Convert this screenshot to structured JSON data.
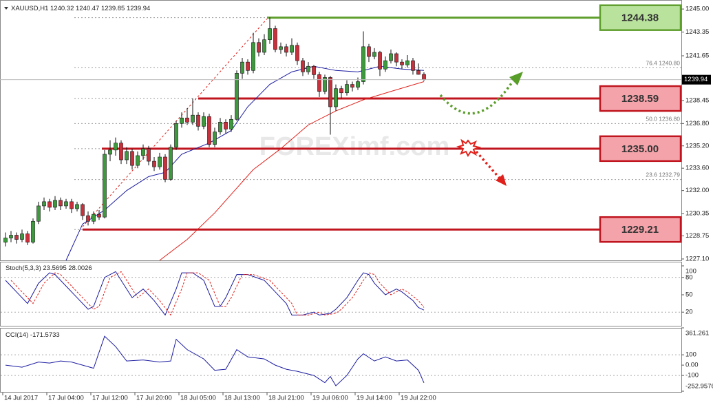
{
  "chart_data": [
    {
      "type": "candlestick",
      "title": "XAUUSD,H1",
      "up_color": "#3c9a3c",
      "down_color": "#c8303c",
      "candles": [
        [
          1228.3,
          1229.0,
          1228.0,
          1228.6
        ],
        [
          1228.6,
          1229.1,
          1228.3,
          1228.8
        ],
        [
          1228.8,
          1229.0,
          1228.2,
          1228.5
        ],
        [
          1228.5,
          1229.2,
          1228.3,
          1228.9
        ],
        [
          1228.9,
          1229.1,
          1228.1,
          1228.3
        ],
        [
          1228.3,
          1230.0,
          1228.2,
          1229.8
        ],
        [
          1229.8,
          1231.2,
          1229.6,
          1230.9
        ],
        [
          1230.9,
          1231.5,
          1230.6,
          1231.2
        ],
        [
          1231.2,
          1231.4,
          1230.5,
          1230.8
        ],
        [
          1230.8,
          1231.6,
          1230.6,
          1231.3
        ],
        [
          1231.3,
          1231.5,
          1230.6,
          1230.9
        ],
        [
          1230.9,
          1231.4,
          1230.7,
          1231.2
        ],
        [
          1231.2,
          1231.4,
          1230.4,
          1230.7
        ],
        [
          1230.7,
          1231.2,
          1230.5,
          1231.0
        ],
        [
          1231.0,
          1231.1,
          1229.9,
          1230.2
        ],
        [
          1230.2,
          1230.5,
          1229.5,
          1229.8
        ],
        [
          1229.8,
          1230.5,
          1229.6,
          1230.3
        ],
        [
          1230.3,
          1230.6,
          1229.9,
          1230.1
        ],
        [
          1230.1,
          1234.9,
          1230.0,
          1234.6
        ],
        [
          1234.6,
          1235.6,
          1234.1,
          1234.9
        ],
        [
          1234.9,
          1235.8,
          1234.5,
          1235.4
        ],
        [
          1235.4,
          1235.6,
          1233.9,
          1234.2
        ],
        [
          1234.2,
          1235.1,
          1233.9,
          1234.8
        ],
        [
          1234.8,
          1235.0,
          1233.5,
          1233.8
        ],
        [
          1233.8,
          1234.8,
          1233.6,
          1234.5
        ],
        [
          1234.5,
          1235.3,
          1234.2,
          1235.0
        ],
        [
          1235.0,
          1235.2,
          1233.8,
          1234.1
        ],
        [
          1234.1,
          1234.4,
          1233.4,
          1233.7
        ],
        [
          1233.7,
          1234.7,
          1233.5,
          1234.4
        ],
        [
          1234.4,
          1234.6,
          1232.6,
          1232.8
        ],
        [
          1232.8,
          1235.3,
          1232.7,
          1235.1
        ],
        [
          1235.1,
          1237.0,
          1234.9,
          1236.8
        ],
        [
          1236.8,
          1237.6,
          1236.5,
          1237.2
        ],
        [
          1237.2,
          1237.9,
          1236.7,
          1236.9
        ],
        [
          1236.9,
          1238.6,
          1236.7,
          1237.4
        ],
        [
          1237.4,
          1237.6,
          1236.3,
          1236.6
        ],
        [
          1236.6,
          1237.6,
          1236.4,
          1237.3
        ],
        [
          1237.3,
          1237.5,
          1235.1,
          1235.3
        ],
        [
          1235.3,
          1236.5,
          1235.1,
          1236.2
        ],
        [
          1236.2,
          1237.2,
          1236.0,
          1236.9
        ],
        [
          1236.9,
          1237.1,
          1236.1,
          1236.4
        ],
        [
          1236.4,
          1237.4,
          1236.2,
          1237.1
        ],
        [
          1237.1,
          1240.6,
          1237.0,
          1240.4
        ],
        [
          1240.4,
          1241.5,
          1240.0,
          1241.2
        ],
        [
          1241.2,
          1241.4,
          1240.3,
          1240.6
        ],
        [
          1240.6,
          1243.3,
          1240.4,
          1242.6
        ],
        [
          1242.6,
          1242.9,
          1241.6,
          1241.9
        ],
        [
          1241.9,
          1243.2,
          1241.7,
          1242.8
        ],
        [
          1242.8,
          1244.4,
          1242.5,
          1243.6
        ],
        [
          1243.6,
          1243.8,
          1241.9,
          1242.1
        ],
        [
          1242.1,
          1242.6,
          1241.8,
          1242.3
        ],
        [
          1242.3,
          1242.5,
          1241.6,
          1241.9
        ],
        [
          1241.9,
          1242.9,
          1241.7,
          1242.4
        ],
        [
          1242.4,
          1242.6,
          1241.0,
          1241.3
        ],
        [
          1241.3,
          1241.5,
          1240.2,
          1240.5
        ],
        [
          1240.5,
          1241.2,
          1240.3,
          1240.9
        ],
        [
          1240.9,
          1241.0,
          1240.0,
          1240.3
        ],
        [
          1240.3,
          1240.5,
          1238.7,
          1239.1
        ],
        [
          1239.1,
          1240.3,
          1238.9,
          1240.1
        ],
        [
          1240.1,
          1240.2,
          1236.0,
          1238.0
        ],
        [
          1238.0,
          1239.6,
          1237.7,
          1239.3
        ],
        [
          1239.3,
          1239.5,
          1238.6,
          1239.0
        ],
        [
          1239.0,
          1239.9,
          1238.8,
          1239.6
        ],
        [
          1239.6,
          1239.8,
          1239.1,
          1239.4
        ],
        [
          1239.4,
          1240.1,
          1239.2,
          1239.8
        ],
        [
          1239.8,
          1243.4,
          1239.6,
          1242.3
        ],
        [
          1242.3,
          1242.5,
          1241.2,
          1241.6
        ],
        [
          1241.6,
          1242.2,
          1241.4,
          1241.9
        ],
        [
          1241.9,
          1242.0,
          1240.2,
          1240.7
        ],
        [
          1240.7,
          1241.6,
          1240.5,
          1241.3
        ],
        [
          1241.3,
          1242.1,
          1241.1,
          1241.8
        ],
        [
          1241.8,
          1241.9,
          1240.9,
          1241.2
        ],
        [
          1241.2,
          1241.4,
          1240.7,
          1241.0
        ],
        [
          1241.0,
          1241.7,
          1240.8,
          1241.3
        ],
        [
          1241.3,
          1241.5,
          1240.3,
          1240.6
        ],
        [
          1240.6,
          1241.1,
          1240.3,
          1240.32
        ],
        [
          1240.32,
          1240.47,
          1239.85,
          1239.94
        ]
      ],
      "ylim": [
        1227.0,
        1245.4
      ],
      "yticks": [
        {
          "value": 1245,
          "label": "1245.00"
        },
        1243.35,
        1241.65,
        1238.45,
        {
          "value": 1236.8,
          "label": "1236.80"
        },
        {
          "value": 1235.2,
          "label": "1235.20"
        },
        {
          "value": 1233.6,
          "label": "1233.60"
        },
        {
          "value": 1232,
          "label": "1232.00"
        },
        1230.35,
        1228.75,
        {
          "value": 1227.1,
          "label": "1227.10"
        }
      ],
      "xticks": [
        {
          "value": 0,
          "label": "14 Jul 2017"
        },
        {
          "value": 8,
          "label": "17 Jul 04:00"
        },
        {
          "value": 16,
          "label": "17 Jul 12:00"
        },
        {
          "value": 24,
          "label": "17 Jul 20:00"
        },
        {
          "value": 32,
          "label": "18 Jul 05:00"
        },
        {
          "value": 40,
          "label": "18 Jul 13:00"
        },
        {
          "value": 48,
          "label": "18 Jul 21:00"
        },
        {
          "value": 56,
          "label": "19 Jul 06:00"
        },
        {
          "value": 64,
          "label": "19 Jul 14:00"
        },
        {
          "value": 72,
          "label": "19 Jul 22:00"
        }
      ],
      "lines": [
        {
          "color": "#1a1aa0",
          "x": [
            11,
            14,
            18,
            22,
            26,
            29,
            32,
            37,
            41,
            44,
            48,
            52,
            56,
            60,
            64,
            68,
            72,
            76
          ],
          "values": [
            1227.0,
            1229.6,
            1230.6,
            1232.0,
            1233.0,
            1233.3,
            1234.6,
            1235.4,
            1236.3,
            1238.0,
            1239.6,
            1240.5,
            1240.9,
            1240.6,
            1240.5,
            1240.9,
            1240.7,
            1240.6
          ]
        },
        {
          "color": "#e0201a",
          "x": [
            28,
            33,
            38,
            45,
            50,
            55,
            60,
            65,
            70,
            76
          ],
          "values": [
            1227.0,
            1228.5,
            1230.4,
            1233.5,
            1235.0,
            1236.7,
            1237.7,
            1238.5,
            1239.1,
            1239.8
          ]
        }
      ],
      "fib_line": {
        "color": "#e0201a",
        "x": [
          14,
          47.5
        ],
        "values": [
          1229.4,
          1244.3
        ]
      },
      "fib": [
        {
          "ratio": "76.4",
          "value": 1240.8,
          "label": "1240.80"
        },
        {
          "ratio": "50.0",
          "value": 1236.8,
          "label": "1236.80"
        },
        {
          "ratio": "23.6",
          "value": 1232.79
        }
      ],
      "levels": [
        {
          "value": 1244.38,
          "color": "#5e9e2c",
          "fill": "#b9e39d"
        },
        {
          "value": 1238.59,
          "color": "#c0141e",
          "fill": "#f4a3aa"
        },
        {
          "value": 1235,
          "label": "1235.00",
          "color": "#c0141e",
          "fill": "#f4a3aa"
        },
        {
          "value": 1229.21,
          "color": "#c0141e",
          "fill": "#f4a3aa"
        }
      ],
      "watermark": "FOREXimf.com"
    },
    {
      "type": "line",
      "title": "Stoch(5,3,3)",
      "ylim": [
        0,
        100
      ],
      "yticks": [
        20,
        50,
        80,
        100
      ],
      "levels": [
        20,
        80
      ],
      "series": [
        {
          "color": "#1a1aa0",
          "x": [
            0,
            1,
            2,
            4,
            6,
            8,
            9,
            11,
            13,
            15,
            16,
            18,
            20,
            21,
            23,
            25,
            27,
            29,
            31,
            32,
            34,
            36,
            38,
            39,
            40,
            42,
            44,
            47,
            49,
            51,
            52,
            54,
            56,
            57,
            59,
            60,
            62,
            64,
            65,
            66,
            67,
            69,
            71,
            72,
            74,
            75,
            76
          ],
          "values": [
            75,
            65,
            55,
            35,
            70,
            88,
            85,
            65,
            45,
            25,
            30,
            80,
            90,
            75,
            45,
            60,
            40,
            15,
            60,
            88,
            88,
            75,
            30,
            30,
            45,
            85,
            85,
            75,
            55,
            35,
            15,
            15,
            20,
            15,
            18,
            25,
            45,
            75,
            88,
            85,
            70,
            50,
            60,
            55,
            40,
            28,
            23.5695
          ]
        },
        {
          "color": "#e0201a",
          "dashed": true,
          "x": [
            1,
            2,
            3,
            5,
            7,
            9,
            10,
            12,
            14,
            16,
            17,
            19,
            21,
            22,
            24,
            26,
            28,
            30,
            32,
            33,
            35,
            37,
            39,
            40,
            41,
            43,
            45,
            48,
            50,
            52,
            53,
            55,
            57,
            58,
            60,
            61,
            63,
            65,
            66,
            67,
            68,
            70,
            72,
            73,
            75,
            76
          ],
          "values": [
            75,
            65,
            55,
            35,
            70,
            88,
            85,
            65,
            45,
            25,
            30,
            80,
            90,
            75,
            45,
            60,
            40,
            15,
            60,
            88,
            88,
            75,
            30,
            30,
            45,
            85,
            85,
            75,
            55,
            35,
            15,
            15,
            20,
            15,
            18,
            25,
            45,
            75,
            88,
            85,
            70,
            50,
            60,
            55,
            40,
            28.0026
          ]
        }
      ]
    },
    {
      "type": "line",
      "title": "CCI(14)",
      "ylim": [
        -252.9576,
        361.261
      ],
      "yticks": [
        361.261,
        100,
        {
          "value": 0,
          "label": "0.00"
        },
        -100,
        -252.9576
      ],
      "levels": [
        100,
        -100
      ],
      "series": [
        {
          "color": "#1a1aa0",
          "x": [
            0,
            3,
            6,
            8,
            10,
            12,
            14,
            16,
            18,
            20,
            22,
            25,
            28,
            30,
            31,
            33,
            36,
            38,
            40,
            42,
            44,
            47,
            49,
            51,
            53,
            56,
            58,
            59,
            60,
            62,
            64,
            65,
            67,
            69,
            71,
            73,
            75,
            76
          ],
          "values": [
            0,
            -20,
            30,
            20,
            40,
            30,
            0,
            -30,
            280,
            180,
            40,
            50,
            30,
            40,
            250,
            150,
            60,
            -50,
            -40,
            150,
            80,
            60,
            0,
            -40,
            -60,
            -100,
            -170,
            -110,
            -200,
            -100,
            60,
            110,
            40,
            80,
            40,
            50,
            -50,
            -171.5733
          ]
        }
      ]
    }
  ]
}
